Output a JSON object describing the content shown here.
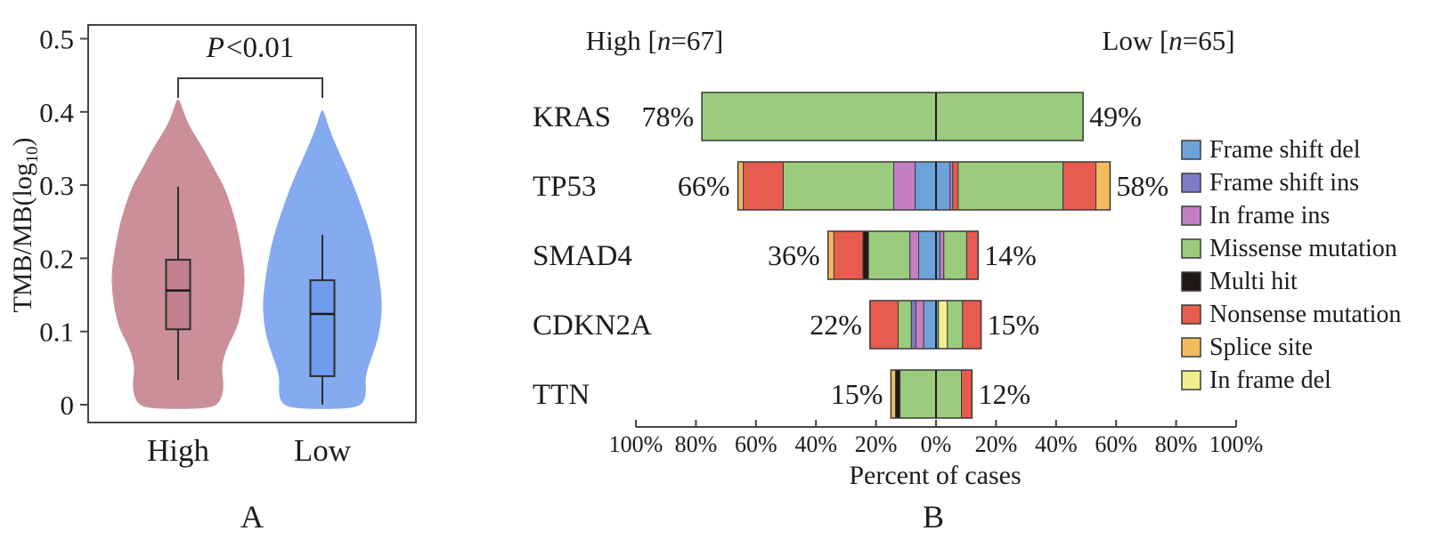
{
  "panel_a": {
    "label": "A",
    "p_annotation": {
      "italic": "P",
      "rest": "<0.01"
    },
    "y_title_pre": "TMB/MB(log",
    "y_title_sub": "10",
    "y_title_post": ")"
  },
  "panel_b": {
    "label": "B",
    "header_high": {
      "pre": "High [",
      "it": "n",
      "post": "=67]"
    },
    "header_low": {
      "pre": "Low [",
      "it": "n",
      "post": "=65]"
    },
    "x_axis_title": "Percent of cases"
  },
  "chart_data": [
    {
      "type": "violin+box",
      "ylabel": "TMB/MB(log10)",
      "ylim": [
        0,
        0.5
      ],
      "y_ticks": [
        "0",
        "0.1",
        "0.2",
        "0.3",
        "0.4",
        "0.5"
      ],
      "y_tick_values": [
        0,
        0.1,
        0.2,
        0.3,
        0.4,
        0.5
      ],
      "categories": [
        "High",
        "Low"
      ],
      "annotation": "P<0.01",
      "grid": false,
      "series": [
        {
          "name": "High",
          "violin_color": "#ca8f99",
          "box_color": "#c2808e",
          "q1": 0.103,
          "median": 0.156,
          "q3": 0.198,
          "whisker_low": 0.034,
          "whisker_high": 0.298,
          "kde_peak_value": 0.17,
          "kde_profile": [
            [
              0.415,
              0.03
            ],
            [
              0.4,
              0.08
            ],
            [
              0.38,
              0.17
            ],
            [
              0.35,
              0.38
            ],
            [
              0.32,
              0.55
            ],
            [
              0.3,
              0.68
            ],
            [
              0.27,
              0.8
            ],
            [
              0.24,
              0.89
            ],
            [
              0.21,
              0.95
            ],
            [
              0.18,
              1.0
            ],
            [
              0.15,
              0.985
            ],
            [
              0.12,
              0.93
            ],
            [
              0.1,
              0.86
            ],
            [
              0.08,
              0.74
            ],
            [
              0.06,
              0.67
            ],
            [
              0.045,
              0.655
            ],
            [
              0.03,
              0.68
            ],
            [
              0.015,
              0.67
            ],
            [
              0.0,
              0.6
            ]
          ]
        },
        {
          "name": "Low",
          "violin_color": "#84aaef",
          "box_color": "#6f9ced",
          "q1": 0.039,
          "median": 0.124,
          "q3": 0.17,
          "whisker_low": 0.0,
          "whisker_high": 0.232,
          "kde_peak_value": 0.14,
          "kde_profile": [
            [
              0.4,
              0.03
            ],
            [
              0.38,
              0.1
            ],
            [
              0.35,
              0.25
            ],
            [
              0.32,
              0.42
            ],
            [
              0.29,
              0.57
            ],
            [
              0.26,
              0.7
            ],
            [
              0.23,
              0.82
            ],
            [
              0.2,
              0.9
            ],
            [
              0.17,
              0.96
            ],
            [
              0.14,
              1.0
            ],
            [
              0.115,
              0.985
            ],
            [
              0.09,
              0.93
            ],
            [
              0.07,
              0.85
            ],
            [
              0.05,
              0.76
            ],
            [
              0.035,
              0.72
            ],
            [
              0.02,
              0.73
            ],
            [
              0.01,
              0.72
            ],
            [
              0.0,
              0.66
            ]
          ]
        }
      ]
    },
    {
      "type": "mirrored-stacked-bar",
      "xlabel": "Percent of cases",
      "group_left": "High [n=67]",
      "group_right": "Low [n=65]",
      "x_ticks": [
        "100%",
        "80%",
        "60%",
        "40%",
        "20%",
        "0%",
        "20%",
        "40%",
        "60%",
        "80%",
        "100%"
      ],
      "x_tick_values": [
        -100,
        -80,
        -60,
        -40,
        -20,
        0,
        20,
        40,
        60,
        80,
        100
      ],
      "colors": {
        "frame_shift_del": "#6da3d9",
        "frame_shift_ins": "#7d7bc8",
        "in_frame_ins": "#c47fc2",
        "missense": "#9bcc7d",
        "multi_hit": "#201717",
        "nonsense": "#e85c50",
        "splice": "#f3bb60",
        "in_frame_del": "#f1ee90"
      },
      "legend": [
        {
          "key": "frame_shift_del",
          "label": "Frame shift del"
        },
        {
          "key": "frame_shift_ins",
          "label": "Frame shift ins"
        },
        {
          "key": "in_frame_ins",
          "label": "In frame ins"
        },
        {
          "key": "missense",
          "label": "Missense mutation"
        },
        {
          "key": "multi_hit",
          "label": "Multi hit"
        },
        {
          "key": "nonsense",
          "label": "Nonsense mutation"
        },
        {
          "key": "splice",
          "label": "Splice site"
        },
        {
          "key": "in_frame_del",
          "label": "In frame del"
        }
      ],
      "genes": [
        {
          "name": "KRAS",
          "left_pct": "78%",
          "right_pct": "49%",
          "left": [
            [
              "missense",
              78.0
            ]
          ],
          "right": [
            [
              "missense",
              49.0
            ]
          ]
        },
        {
          "name": "TP53",
          "left_pct": "66%",
          "right_pct": "58%",
          "left": [
            [
              "splice",
              1.8
            ],
            [
              "nonsense",
              13.3
            ],
            [
              "missense",
              36.8
            ],
            [
              "in_frame_ins",
              7.2
            ],
            [
              "frame_shift_del",
              6.9
            ]
          ],
          "right": [
            [
              "frame_shift_del",
              4.7
            ],
            [
              "in_frame_ins",
              0.9
            ],
            [
              "nonsense",
              1.8
            ],
            [
              "missense",
              34.9
            ],
            [
              "nonsense",
              11.0
            ],
            [
              "splice",
              4.7
            ]
          ]
        },
        {
          "name": "SMAD4",
          "left_pct": "36%",
          "right_pct": "14%",
          "left": [
            [
              "splice",
              2.0
            ],
            [
              "nonsense",
              9.7
            ],
            [
              "multi_hit",
              1.8
            ],
            [
              "missense",
              13.8
            ],
            [
              "in_frame_ins",
              2.9
            ],
            [
              "frame_shift_del",
              5.8
            ]
          ],
          "right": [
            [
              "frame_shift_del",
              1.3
            ],
            [
              "in_frame_ins",
              1.3
            ],
            [
              "missense",
              7.6
            ],
            [
              "nonsense",
              3.8
            ]
          ]
        },
        {
          "name": "CDKN2A",
          "left_pct": "22%",
          "right_pct": "15%",
          "left": [
            [
              "nonsense",
              9.4
            ],
            [
              "missense",
              4.4
            ],
            [
              "frame_shift_ins",
              1.5
            ],
            [
              "in_frame_ins",
              2.6
            ],
            [
              "frame_shift_del",
              4.1
            ]
          ],
          "right": [
            [
              "frame_shift_del",
              0.8
            ],
            [
              "in_frame_del",
              3.0
            ],
            [
              "missense",
              5.0
            ],
            [
              "nonsense",
              6.2
            ]
          ]
        },
        {
          "name": "TTN",
          "left_pct": "15%",
          "right_pct": "12%",
          "left": [
            [
              "splice",
              1.5
            ],
            [
              "multi_hit",
              1.5
            ],
            [
              "missense",
              12.0
            ]
          ],
          "right": [
            [
              "missense",
              8.5
            ],
            [
              "nonsense",
              3.5
            ]
          ]
        }
      ]
    }
  ]
}
